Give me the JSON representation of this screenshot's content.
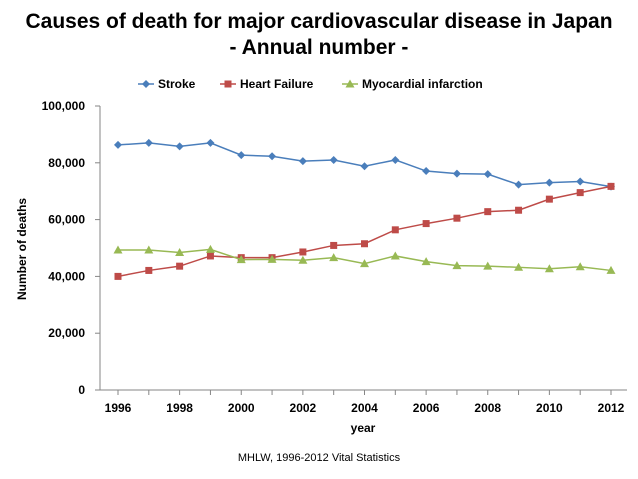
{
  "title_line1": "Causes of death for major cardiovascular disease in Japan",
  "title_line2": "- Annual number -",
  "source": "MHLW, 1996-2012 Vital Statistics",
  "chart_data": {
    "type": "line",
    "x": [
      1996,
      1997,
      1998,
      1999,
      2000,
      2001,
      2002,
      2003,
      2004,
      2005,
      2006,
      2007,
      2008,
      2009,
      2010,
      2011,
      2012
    ],
    "x_tick_labels": [
      "1996",
      "1998",
      "2000",
      "2002",
      "2004",
      "2006",
      "2008",
      "2010",
      "2012"
    ],
    "xlabel": "year",
    "ylabel": "Number of deaths",
    "ylim": [
      0,
      100000
    ],
    "y_tick_labels": [
      "0",
      "20,000",
      "40,000",
      "60,000",
      "80,000",
      "100,000"
    ],
    "y_tick_values": [
      0,
      20000,
      40000,
      60000,
      80000,
      100000
    ],
    "grid": false,
    "legend_position": "top",
    "series": [
      {
        "name": "Stroke",
        "color": "#4a7ebb",
        "marker": "diamond",
        "values": [
          86300,
          87000,
          85800,
          87000,
          82700,
          82300,
          80600,
          81000,
          78800,
          81000,
          77100,
          76200,
          76000,
          72300,
          73000,
          73400,
          71600
        ]
      },
      {
        "name": "Heart Failure",
        "color": "#be4b48",
        "marker": "square",
        "values": [
          40000,
          42100,
          43600,
          47200,
          46600,
          46600,
          48600,
          50900,
          51500,
          56400,
          58600,
          60500,
          62800,
          63300,
          67200,
          69500,
          71700
        ]
      },
      {
        "name": "Myocardial infarction",
        "color": "#98b954",
        "marker": "triangle",
        "values": [
          49300,
          49300,
          48400,
          49500,
          45900,
          46000,
          45700,
          46600,
          44500,
          47200,
          45200,
          43800,
          43600,
          43200,
          42700,
          43400,
          42100
        ]
      }
    ]
  }
}
